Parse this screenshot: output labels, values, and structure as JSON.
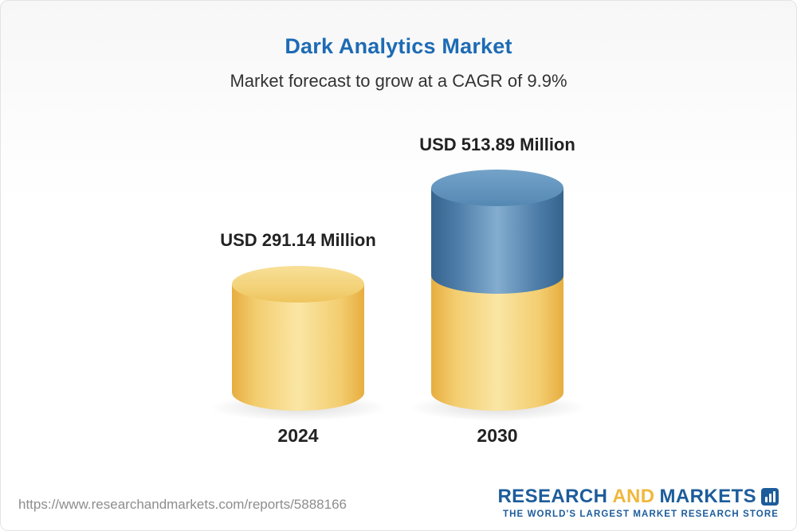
{
  "chart": {
    "title": "Dark Analytics Market",
    "subtitle": "Market forecast to grow at a CAGR of 9.9%"
  },
  "chart_data": {
    "type": "bar",
    "title": "Dark Analytics Market",
    "subtitle": "Market forecast to grow at a CAGR of 9.9%",
    "cagr_percent": 9.9,
    "unit": "USD Million",
    "categories": [
      "2024",
      "2030"
    ],
    "values": [
      291.14,
      513.89
    ],
    "value_labels": [
      "USD 291.14 Million",
      "USD 513.89 Million"
    ],
    "legend_position": "none",
    "grid": false,
    "colors": {
      "bar_2024": "#f2cd6b",
      "bar_2030_base": "#f2cd6b",
      "bar_2030_growth_segment": "#4a7aa6",
      "title_text": "#1d6bb4"
    }
  },
  "footer": {
    "url": "https://www.researchandmarkets.com/reports/5888166",
    "logo": {
      "word1": "RESEARCH",
      "word2": "AND",
      "word3": "MARKETS",
      "tagline": "THE WORLD'S LARGEST MARKET RESEARCH STORE"
    }
  }
}
